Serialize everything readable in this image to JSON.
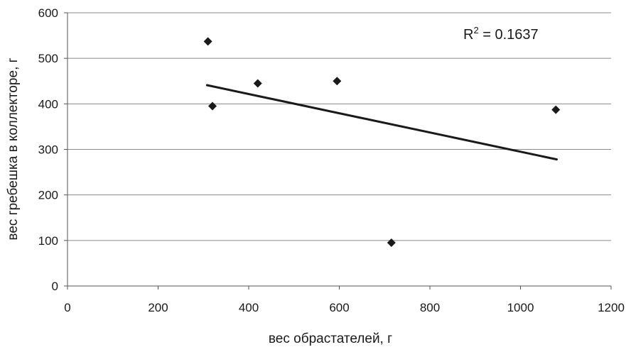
{
  "chart_data": {
    "type": "scatter",
    "title": "",
    "xlabel": "вес обрастателей, г",
    "ylabel": "вес гребешка в коллекторе, г",
    "xlim": [
      0,
      1200
    ],
    "ylim": [
      0,
      600
    ],
    "x_ticks": [
      0,
      200,
      400,
      600,
      800,
      1000,
      1200
    ],
    "y_ticks": [
      0,
      100,
      200,
      300,
      400,
      500,
      600
    ],
    "x_tick_labels": [
      "0",
      "200",
      "400",
      "600",
      "800",
      "1000",
      "1200"
    ],
    "y_tick_labels": [
      "0",
      "100",
      "200",
      "300",
      "400",
      "500",
      "600"
    ],
    "grid": "horizontal",
    "points": [
      {
        "x": 310,
        "y": 537
      },
      {
        "x": 320,
        "y": 395
      },
      {
        "x": 420,
        "y": 445
      },
      {
        "x": 595,
        "y": 450
      },
      {
        "x": 715,
        "y": 95
      },
      {
        "x": 1078,
        "y": 387
      }
    ],
    "trendline": {
      "type": "linear",
      "x": [
        308,
        1080
      ],
      "y": [
        441,
        278
      ]
    },
    "annotation": {
      "base": "R",
      "sup": "2",
      "rest": " = 0.1637"
    },
    "colors": {
      "marker": "#1a1a1a",
      "trendline": "#1a1a1a",
      "grid": "#8a8a8a",
      "axis": "#555555"
    }
  }
}
